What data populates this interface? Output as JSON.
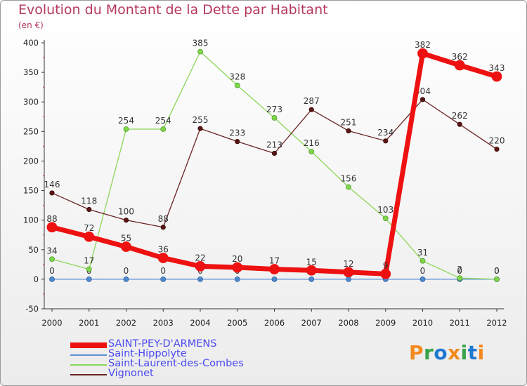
{
  "title": "Evolution du Montant de la Dette par Habitant",
  "subtitle": "(en €)",
  "logo": {
    "text": "Proxiti",
    "colors": [
      "#f28a1e",
      "#37a34a",
      "#1f78d1",
      "#f28a1e",
      "#37a34a",
      "#1f78d1",
      "#f28a1e"
    ]
  },
  "chart_data": {
    "type": "line",
    "title": "Evolution du Montant de la Dette par Habitant",
    "ylabel": "(en €)",
    "ylim": [
      -50,
      400
    ],
    "yticks": [
      -50,
      0,
      50,
      100,
      150,
      200,
      250,
      300,
      350,
      400
    ],
    "ytick_labels": [
      "-50",
      "0",
      "50",
      "100",
      "150",
      "200",
      "250",
      "300",
      "350",
      "400"
    ],
    "categories": [
      "2000",
      "2001",
      "2002",
      "2003",
      "2004",
      "2005",
      "2006",
      "2007",
      "2008",
      "2009",
      "2010",
      "2011",
      "2012"
    ],
    "grid": false,
    "legend_position": "bottom-left",
    "series": [
      {
        "name": "Saint-Hippolyte",
        "color": "#5b8fd6",
        "values": [
          0,
          0,
          0,
          0,
          0,
          0,
          0,
          0,
          0,
          0,
          0,
          0,
          0
        ],
        "labels": [
          "0",
          "0",
          "0",
          "0",
          "0",
          "0",
          "0",
          "0",
          "0",
          "0",
          "0",
          "0",
          "0"
        ]
      },
      {
        "name": "Saint-Laurent-des-Combes",
        "color": "#8cd65a",
        "values": [
          34,
          17,
          254,
          254,
          385,
          328,
          273,
          216,
          156,
          103,
          31,
          2,
          0
        ],
        "labels": [
          "34",
          "17",
          "254",
          "254",
          "385",
          "328",
          "273",
          "216",
          "156",
          "103",
          "31",
          "2",
          "0"
        ]
      },
      {
        "name": "Vignonet",
        "color": "#6b2323",
        "values": [
          146,
          118,
          100,
          88,
          255,
          233,
          213,
          287,
          251,
          234,
          304,
          262,
          220
        ],
        "labels": [
          "146",
          "118",
          "100",
          "88",
          "255",
          "233",
          "213",
          "287",
          "251",
          "234",
          "304",
          "262",
          "220"
        ]
      },
      {
        "name": "SAINT-PEY-D'ARMENS",
        "color": "#ee1111",
        "values": [
          88,
          72,
          55,
          36,
          22,
          20,
          17,
          15,
          12,
          9,
          382,
          362,
          343
        ],
        "labels": [
          "88",
          "72",
          "55",
          "36",
          "22",
          "20",
          "17",
          "15",
          "12",
          "9",
          "382",
          "362",
          "343"
        ]
      }
    ],
    "legend": [
      {
        "name": "SAINT-PEY-D'ARMENS",
        "color": "#ee1111"
      },
      {
        "name": "Saint-Hippolyte",
        "color": "#5b8fd6"
      },
      {
        "name": "Saint-Laurent-des-Combes",
        "color": "#8cd65a"
      },
      {
        "name": "Vignonet",
        "color": "#6b2323"
      }
    ]
  }
}
